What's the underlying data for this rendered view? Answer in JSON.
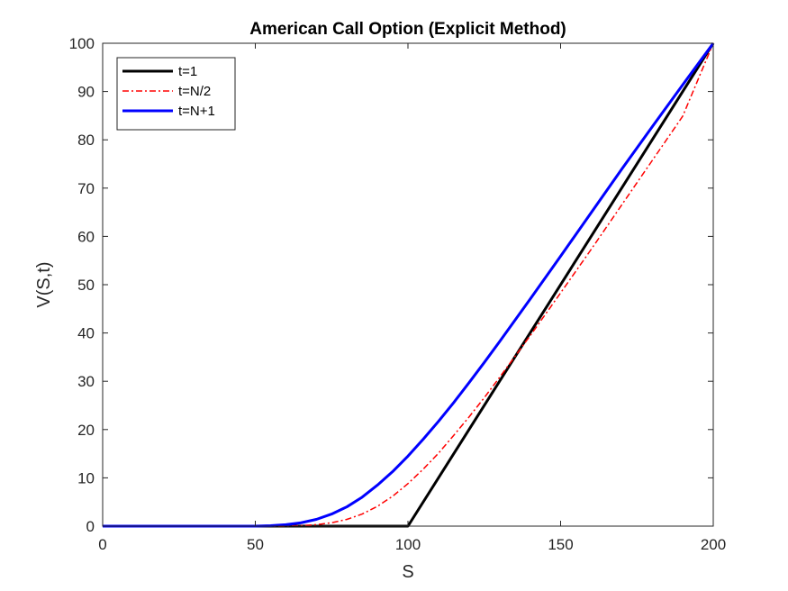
{
  "chart_data": {
    "type": "line",
    "title": "American Call Option (Explicit Method)",
    "xlabel": "S",
    "ylabel": "V(S,t)",
    "xlim": [
      0,
      200
    ],
    "ylim": [
      0,
      100
    ],
    "xticks": [
      0,
      50,
      100,
      150,
      200
    ],
    "yticks": [
      0,
      10,
      20,
      30,
      40,
      50,
      60,
      70,
      80,
      90,
      100
    ],
    "grid": false,
    "legend_position": "top-left",
    "series": [
      {
        "name": "t=1",
        "color": "#000000",
        "style": "solid",
        "x": [
          0,
          50,
          100,
          200
        ],
        "y": [
          0,
          0,
          0,
          100
        ]
      },
      {
        "name": "t=N/2",
        "color": "#ff0000",
        "style": "dashdot",
        "x": [
          0,
          50,
          60,
          65,
          70,
          75,
          80,
          85,
          90,
          95,
          100,
          105,
          110,
          115,
          120,
          125,
          130,
          140,
          150,
          160,
          170,
          180,
          190,
          200
        ],
        "y": [
          0,
          0,
          0,
          0.1,
          0.3,
          0.7,
          1.4,
          2.5,
          4.1,
          6.2,
          8.8,
          11.8,
          15.1,
          18.8,
          22.6,
          26.6,
          30.8,
          39.4,
          48.3,
          57.3,
          66.5,
          75.7,
          84.9,
          100
        ]
      },
      {
        "name": "t=N+1",
        "color": "#0000ff",
        "style": "solid",
        "x": [
          0,
          50,
          55,
          60,
          65,
          70,
          75,
          80,
          85,
          90,
          95,
          100,
          105,
          110,
          115,
          120,
          125,
          130,
          140,
          150,
          160,
          170,
          180,
          190,
          200
        ],
        "y": [
          0,
          0,
          0.1,
          0.3,
          0.7,
          1.4,
          2.5,
          4.0,
          6.0,
          8.5,
          11.3,
          14.5,
          18.0,
          21.7,
          25.6,
          29.7,
          33.9,
          38.2,
          47.0,
          55.9,
          64.9,
          73.9,
          82.7,
          91.4,
          100
        ]
      }
    ]
  }
}
